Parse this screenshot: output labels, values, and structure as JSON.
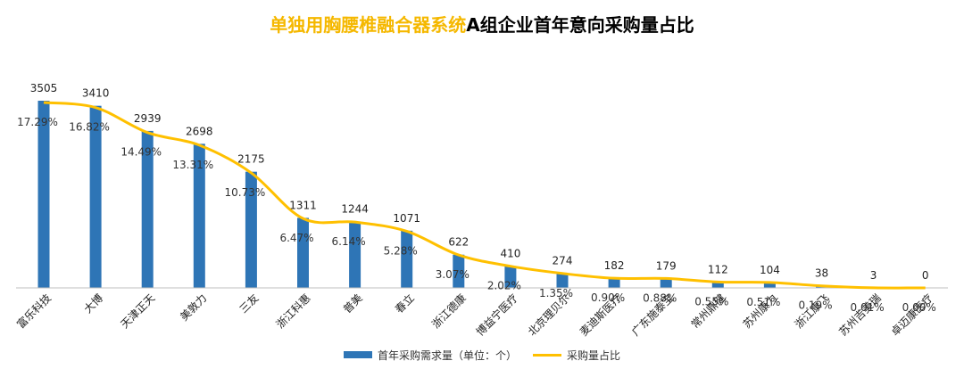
{
  "chart_data": {
    "type": "bar",
    "title_highlight": "单独用胸腰椎融合器系统",
    "title_rest": "A组企业首年意向采购量占比",
    "categories": [
      "富乐科技",
      "大博",
      "天津正天",
      "美敦力",
      "三友",
      "浙江科惠",
      "普美",
      "春立",
      "浙江德康",
      "博益宁医疗",
      "北京理贝尔",
      "麦迪斯医疗",
      "广东施泰宝",
      "常州鼎健",
      "苏州康力",
      "浙江康飞",
      "苏州吉美瑞",
      "卓迈康医疗"
    ],
    "series": [
      {
        "name": "首年采购需求量（单位：个）",
        "kind": "bar",
        "color": "#2E75B6",
        "values": [
          3505,
          3410,
          2939,
          2698,
          2175,
          1311,
          1244,
          1071,
          622,
          410,
          274,
          182,
          179,
          112,
          104,
          38,
          3,
          0
        ],
        "labels": [
          "3505",
          "3410",
          "2939",
          "2698",
          "2175",
          "1311",
          "1244",
          "1071",
          "622",
          "410",
          "274",
          "182",
          "179",
          "112",
          "104",
          "38",
          "3",
          "0"
        ]
      },
      {
        "name": "采购量占比",
        "kind": "line",
        "color": "#FFC000",
        "values": [
          17.29,
          16.82,
          14.49,
          13.31,
          10.73,
          6.47,
          6.14,
          5.28,
          3.07,
          2.02,
          1.35,
          0.9,
          0.88,
          0.55,
          0.51,
          0.19,
          0.01,
          0.0
        ],
        "labels": [
          "17.29%",
          "16.82%",
          "14.49%",
          "13.31%",
          "10.73%",
          "6.47%",
          "6.14%",
          "5.28%",
          "3.07%",
          "2.02%",
          "1.35%",
          "0.90%",
          "0.88%",
          "0.55%",
          "0.51%",
          "0.19%",
          "0.01%",
          "0.00%"
        ]
      }
    ],
    "ylim_bar": [
      0,
      3505
    ],
    "ylim_line": [
      0,
      17.29
    ],
    "grid": false,
    "legend_position": "bottom"
  }
}
